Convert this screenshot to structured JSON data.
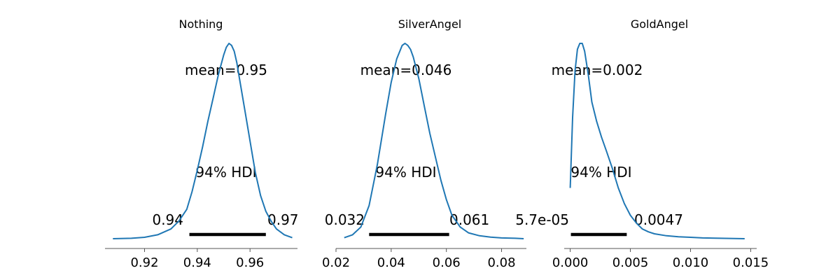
{
  "chart_data": [
    {
      "type": "area",
      "title": "Nothing",
      "xlim": [
        0.905,
        0.978
      ],
      "xticks": [
        0.92,
        0.94,
        0.96
      ],
      "xtick_labels": [
        "0.92",
        "0.94",
        "0.96"
      ],
      "mean_label": "mean=0.95",
      "hdi_label": "94% HDI",
      "hdi": [
        0.937,
        0.966
      ],
      "hdi_low_label": "0.94",
      "hdi_high_label": "0.97",
      "grid": false,
      "line_color": "#1f77b4",
      "density": {
        "x": [
          0.908,
          0.915,
          0.92,
          0.925,
          0.93,
          0.933,
          0.936,
          0.938,
          0.94,
          0.942,
          0.944,
          0.946,
          0.948,
          0.95,
          0.951,
          0.952,
          0.953,
          0.954,
          0.955,
          0.956,
          0.958,
          0.96,
          0.962,
          0.964,
          0.966,
          0.968,
          0.97,
          0.973,
          0.976
        ],
        "y": [
          0.0,
          0.002,
          0.007,
          0.02,
          0.05,
          0.09,
          0.15,
          0.24,
          0.35,
          0.47,
          0.6,
          0.72,
          0.84,
          0.94,
          0.98,
          1.0,
          0.99,
          0.96,
          0.9,
          0.82,
          0.66,
          0.5,
          0.34,
          0.22,
          0.14,
          0.09,
          0.05,
          0.02,
          0.005
        ]
      }
    },
    {
      "type": "area",
      "title": "SilverAngel",
      "xlim": [
        0.02,
        0.089
      ],
      "xticks": [
        0.02,
        0.04,
        0.06,
        0.08
      ],
      "xtick_labels": [
        "0.02",
        "0.04",
        "0.06",
        "0.08"
      ],
      "mean_label": "mean=0.046",
      "hdi_label": "94% HDI",
      "hdi": [
        0.032,
        0.061
      ],
      "hdi_low_label": "0.032",
      "hdi_high_label": "0.061",
      "grid": false,
      "line_color": "#1f77b4",
      "density": {
        "x": [
          0.023,
          0.026,
          0.029,
          0.032,
          0.035,
          0.038,
          0.04,
          0.042,
          0.044,
          0.045,
          0.046,
          0.047,
          0.048,
          0.05,
          0.052,
          0.054,
          0.056,
          0.058,
          0.06,
          0.062,
          0.065,
          0.068,
          0.072,
          0.076,
          0.08,
          0.085,
          0.088
        ],
        "y": [
          0.005,
          0.02,
          0.06,
          0.17,
          0.38,
          0.64,
          0.8,
          0.92,
          0.99,
          1.0,
          0.99,
          0.97,
          0.93,
          0.82,
          0.68,
          0.54,
          0.42,
          0.3,
          0.2,
          0.12,
          0.06,
          0.03,
          0.015,
          0.008,
          0.004,
          0.002,
          0.0
        ]
      }
    },
    {
      "type": "area",
      "title": "GoldAngel",
      "xlim": [
        -0.0005,
        0.0155
      ],
      "xticks": [
        0.0,
        0.005,
        0.01,
        0.015
      ],
      "xtick_labels": [
        "0.000",
        "0.005",
        "0.010",
        "0.015"
      ],
      "mean_label": "mean=0.002",
      "hdi_label": "94% HDI",
      "hdi": [
        5.7e-05,
        0.0047
      ],
      "hdi_low_label": "5.7e-05",
      "hdi_high_label": "0.0047",
      "grid": false,
      "line_color": "#1f77b4",
      "density": {
        "x": [
          0.0,
          0.0002,
          0.0004,
          0.0006,
          0.0008,
          0.001,
          0.0012,
          0.0015,
          0.0018,
          0.0022,
          0.0026,
          0.003,
          0.0035,
          0.004,
          0.0045,
          0.005,
          0.0055,
          0.006,
          0.0065,
          0.007,
          0.008,
          0.009,
          0.01,
          0.011,
          0.0125,
          0.0145
        ],
        "y": [
          0.26,
          0.62,
          0.86,
          0.97,
          1.0,
          1.0,
          0.96,
          0.84,
          0.7,
          0.6,
          0.52,
          0.45,
          0.36,
          0.26,
          0.18,
          0.12,
          0.08,
          0.05,
          0.035,
          0.025,
          0.015,
          0.01,
          0.007,
          0.004,
          0.002,
          0.0
        ]
      }
    }
  ]
}
